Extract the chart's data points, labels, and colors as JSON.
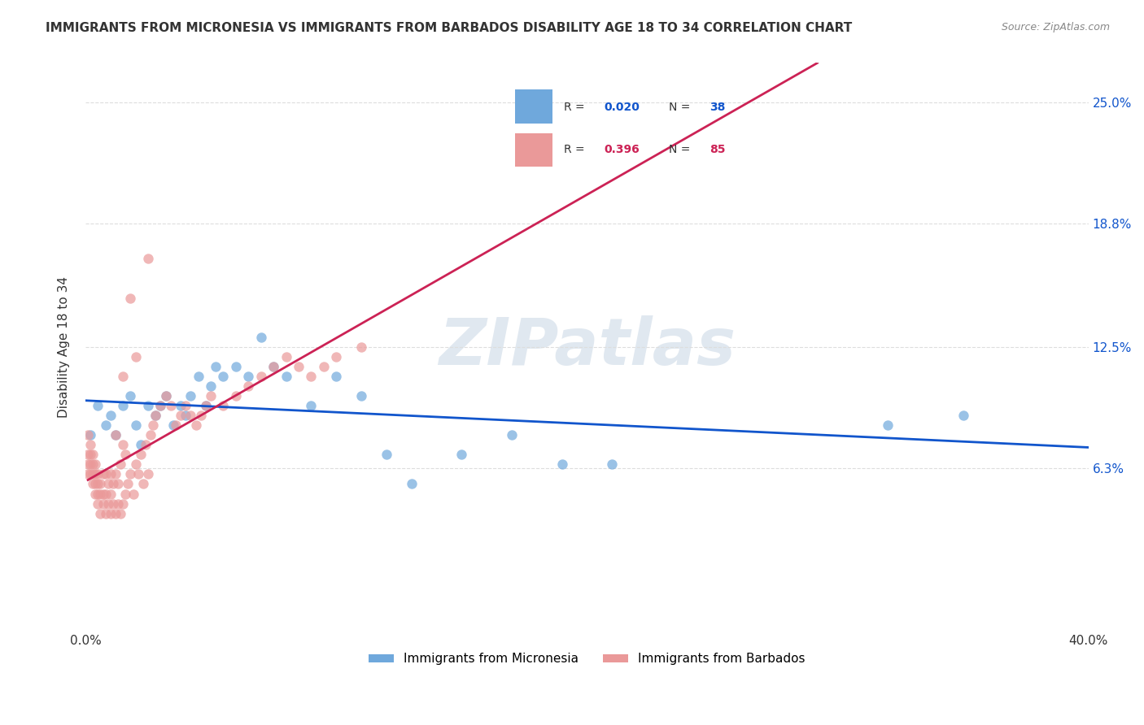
{
  "title": "IMMIGRANTS FROM MICRONESIA VS IMMIGRANTS FROM BARBADOS DISABILITY AGE 18 TO 34 CORRELATION CHART",
  "source": "Source: ZipAtlas.com",
  "ylabel": "Disability Age 18 to 34",
  "ytick_labels": [
    "6.3%",
    "12.5%",
    "18.8%",
    "25.0%"
  ],
  "ytick_values": [
    0.063,
    0.125,
    0.188,
    0.25
  ],
  "xlim": [
    0.0,
    0.4
  ],
  "ylim": [
    -0.02,
    0.27
  ],
  "series_micronesia": {
    "color": "#6fa8dc",
    "line_color": "#1155cc",
    "R": 0.02,
    "N": 38,
    "x": [
      0.002,
      0.005,
      0.008,
      0.01,
      0.012,
      0.015,
      0.018,
      0.02,
      0.022,
      0.025,
      0.028,
      0.03,
      0.032,
      0.035,
      0.038,
      0.04,
      0.042,
      0.045,
      0.048,
      0.05,
      0.052,
      0.055,
      0.06,
      0.065,
      0.07,
      0.075,
      0.08,
      0.09,
      0.1,
      0.11,
      0.12,
      0.13,
      0.15,
      0.17,
      0.19,
      0.21,
      0.32,
      0.35
    ],
    "y": [
      0.08,
      0.095,
      0.085,
      0.09,
      0.08,
      0.095,
      0.1,
      0.085,
      0.075,
      0.095,
      0.09,
      0.095,
      0.1,
      0.085,
      0.095,
      0.09,
      0.1,
      0.11,
      0.095,
      0.105,
      0.115,
      0.11,
      0.115,
      0.11,
      0.13,
      0.115,
      0.11,
      0.095,
      0.11,
      0.1,
      0.07,
      0.055,
      0.07,
      0.08,
      0.065,
      0.065,
      0.085,
      0.09
    ]
  },
  "series_barbados": {
    "color": "#ea9999",
    "line_color": "#cc2255",
    "R": 0.396,
    "N": 85,
    "x": [
      0.001,
      0.001,
      0.001,
      0.001,
      0.002,
      0.002,
      0.002,
      0.002,
      0.003,
      0.003,
      0.003,
      0.003,
      0.004,
      0.004,
      0.004,
      0.004,
      0.005,
      0.005,
      0.005,
      0.005,
      0.006,
      0.006,
      0.006,
      0.007,
      0.007,
      0.007,
      0.008,
      0.008,
      0.008,
      0.009,
      0.009,
      0.01,
      0.01,
      0.01,
      0.011,
      0.011,
      0.012,
      0.012,
      0.013,
      0.013,
      0.014,
      0.014,
      0.015,
      0.015,
      0.016,
      0.016,
      0.017,
      0.018,
      0.019,
      0.02,
      0.021,
      0.022,
      0.023,
      0.024,
      0.025,
      0.026,
      0.027,
      0.028,
      0.03,
      0.032,
      0.034,
      0.036,
      0.038,
      0.04,
      0.042,
      0.044,
      0.046,
      0.048,
      0.05,
      0.055,
      0.06,
      0.065,
      0.07,
      0.075,
      0.08,
      0.085,
      0.09,
      0.095,
      0.1,
      0.11,
      0.012,
      0.015,
      0.018,
      0.02,
      0.025
    ],
    "y": [
      0.06,
      0.065,
      0.07,
      0.08,
      0.06,
      0.065,
      0.07,
      0.075,
      0.055,
      0.06,
      0.065,
      0.07,
      0.05,
      0.055,
      0.06,
      0.065,
      0.045,
      0.05,
      0.055,
      0.06,
      0.04,
      0.05,
      0.055,
      0.045,
      0.05,
      0.06,
      0.04,
      0.05,
      0.06,
      0.045,
      0.055,
      0.04,
      0.05,
      0.06,
      0.045,
      0.055,
      0.04,
      0.06,
      0.045,
      0.055,
      0.04,
      0.065,
      0.045,
      0.075,
      0.05,
      0.07,
      0.055,
      0.06,
      0.05,
      0.065,
      0.06,
      0.07,
      0.055,
      0.075,
      0.06,
      0.08,
      0.085,
      0.09,
      0.095,
      0.1,
      0.095,
      0.085,
      0.09,
      0.095,
      0.09,
      0.085,
      0.09,
      0.095,
      0.1,
      0.095,
      0.1,
      0.105,
      0.11,
      0.115,
      0.12,
      0.115,
      0.11,
      0.115,
      0.12,
      0.125,
      0.08,
      0.11,
      0.15,
      0.12,
      0.17
    ]
  },
  "bg_color": "#ffffff",
  "grid_color": "#dddddd",
  "watermark_text": "ZIPatlas",
  "watermark_color": "#e0e8f0",
  "legend_micronesia": "Immigrants from Micronesia",
  "legend_barbados": "Immigrants from Barbados"
}
